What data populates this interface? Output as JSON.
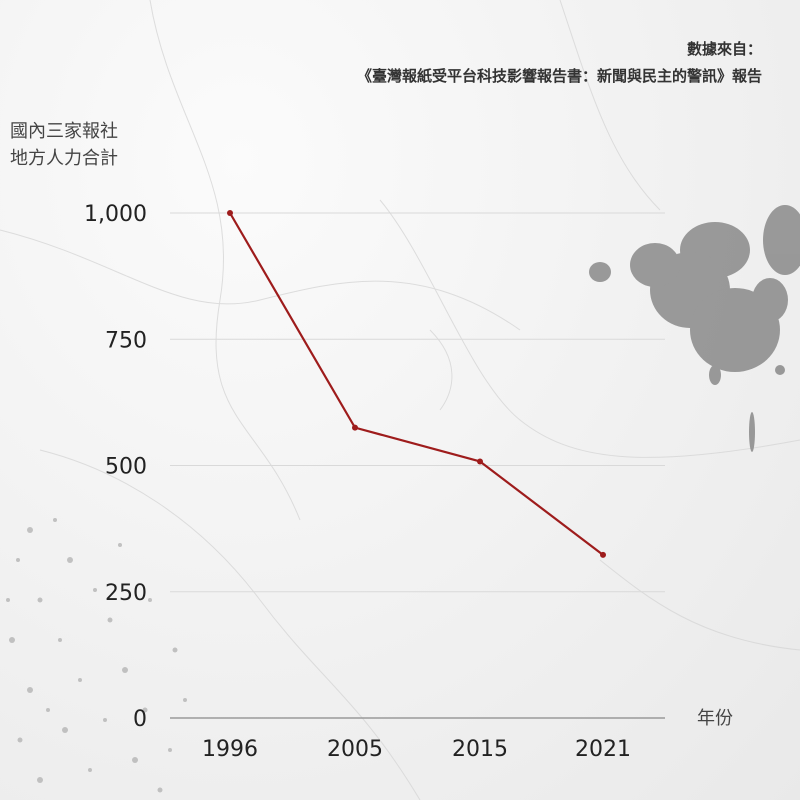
{
  "source": {
    "line1": "數據來自：",
    "line2": "《臺灣報紙受平台科技影響報告書：新聞與民主的警訊》報告"
  },
  "chart_data": {
    "type": "line",
    "ylabel_lines": [
      "國內三家報社",
      "地方人力合計"
    ],
    "xlabel": "年份",
    "x": [
      "1996",
      "2005",
      "2015",
      "2021"
    ],
    "series": [
      {
        "values": [
          1000,
          575,
          508,
          323
        ],
        "color": "#9e1c1c"
      }
    ],
    "ylim": [
      0,
      1000
    ],
    "yticks": [
      0,
      250,
      500,
      750,
      1000
    ],
    "ytick_labels": [
      "0",
      "250",
      "500",
      "750",
      "1,000"
    ],
    "grid": true
  }
}
